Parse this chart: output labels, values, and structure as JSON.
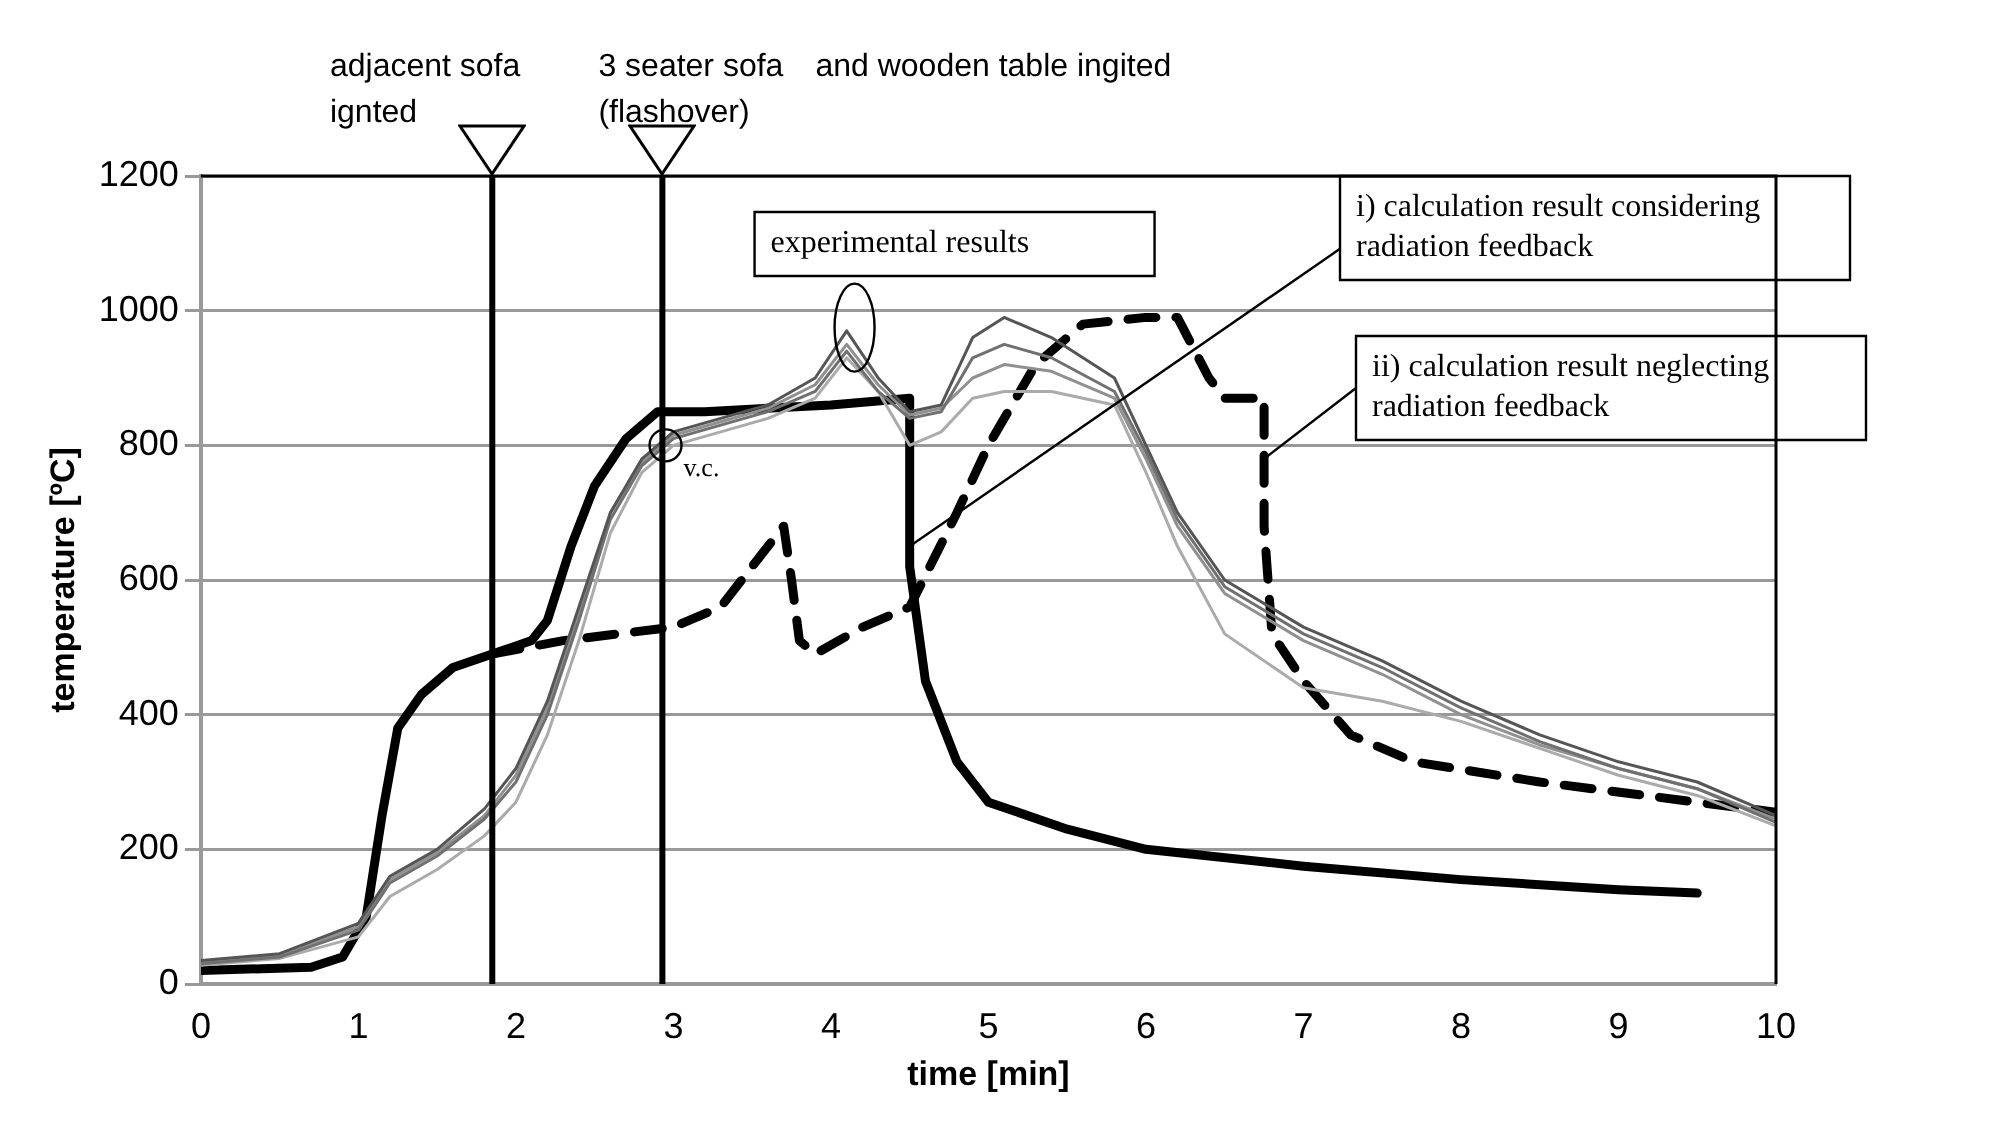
{
  "chart_data": {
    "type": "line",
    "xlabel": "time [min]",
    "ylabel": "temperature [ºC]",
    "xlim": [
      0,
      10
    ],
    "xticks": [
      0,
      1,
      2,
      3,
      4,
      5,
      6,
      7,
      8,
      9,
      10
    ],
    "ylim": [
      0,
      1200
    ],
    "yticks": [
      0,
      200,
      400,
      600,
      800,
      1000,
      1200
    ],
    "grid": "y",
    "legend": false,
    "marker": "none",
    "series": [
      {
        "color": "#555555",
        "x": [
          0,
          0.5,
          1,
          1.2,
          1.5,
          1.8,
          2,
          2.2,
          2.4,
          2.6,
          2.8,
          3,
          3.3,
          3.6,
          3.9,
          4.1,
          4.3,
          4.5,
          4.7,
          4.9,
          5.1,
          5.4,
          5.8,
          6,
          6.2,
          6.5,
          7,
          7.5,
          8,
          8.5,
          9,
          9.5,
          10
        ],
        "values": [
          35,
          45,
          90,
          160,
          200,
          260,
          320,
          420,
          560,
          700,
          780,
          820,
          840,
          860,
          900,
          970,
          900,
          850,
          860,
          960,
          990,
          960,
          900,
          800,
          700,
          600,
          530,
          480,
          420,
          370,
          330,
          300,
          250
        ]
      },
      {
        "color": "#707070",
        "x": [
          0,
          0.5,
          1,
          1.2,
          1.5,
          1.8,
          2,
          2.2,
          2.4,
          2.6,
          2.8,
          3,
          3.3,
          3.6,
          3.9,
          4.1,
          4.3,
          4.5,
          4.7,
          4.9,
          5.1,
          5.4,
          5.8,
          6,
          6.2,
          6.5,
          7,
          7.5,
          8,
          8.5,
          9,
          9.5,
          10
        ],
        "values": [
          30,
          40,
          80,
          150,
          190,
          245,
          300,
          400,
          540,
          690,
          770,
          810,
          830,
          850,
          880,
          940,
          880,
          840,
          850,
          930,
          950,
          930,
          880,
          790,
          690,
          590,
          520,
          470,
          410,
          360,
          320,
          290,
          240
        ]
      },
      {
        "color": "#909090",
        "x": [
          0,
          0.5,
          1,
          1.2,
          1.5,
          1.8,
          2,
          2.2,
          2.4,
          2.6,
          2.8,
          3,
          3.3,
          3.6,
          3.9,
          4.1,
          4.3,
          4.5,
          4.7,
          4.9,
          5.1,
          5.4,
          5.8,
          6,
          6.2,
          6.5,
          7,
          7.5,
          8,
          8.5,
          9,
          9.5,
          10
        ],
        "values": [
          32,
          42,
          85,
          155,
          195,
          250,
          310,
          410,
          550,
          700,
          775,
          815,
          835,
          855,
          890,
          950,
          890,
          845,
          855,
          900,
          920,
          910,
          870,
          780,
          680,
          580,
          510,
          460,
          400,
          355,
          320,
          290,
          245
        ]
      },
      {
        "color": "#ababab",
        "x": [
          0,
          0.5,
          1,
          1.2,
          1.5,
          1.8,
          2,
          2.2,
          2.4,
          2.6,
          2.8,
          3,
          3.3,
          3.6,
          3.9,
          4.1,
          4.3,
          4.5,
          4.7,
          4.9,
          5.1,
          5.4,
          5.8,
          6,
          6.2,
          6.5,
          7,
          7.5,
          8,
          8.5,
          9,
          9.5,
          10
        ],
        "values": [
          28,
          38,
          70,
          130,
          170,
          220,
          270,
          370,
          510,
          670,
          760,
          800,
          820,
          840,
          870,
          930,
          880,
          800,
          820,
          870,
          880,
          880,
          860,
          760,
          650,
          520,
          440,
          420,
          390,
          350,
          310,
          280,
          235
        ]
      },
      {
        "color": "#000000",
        "x": [
          0,
          0.7,
          0.9,
          1.05,
          1.15,
          1.25,
          1.4,
          1.6,
          1.85,
          2.1,
          2.2,
          2.35,
          2.5,
          2.7,
          2.9,
          3.2,
          4,
          4.5,
          4.5,
          4.6,
          4.8,
          5,
          5.5,
          6,
          7,
          8,
          9,
          9.5
        ],
        "values": [
          20,
          25,
          40,
          100,
          250,
          380,
          430,
          470,
          490,
          510,
          540,
          650,
          740,
          810,
          850,
          850,
          860,
          870,
          620,
          450,
          330,
          270,
          230,
          200,
          175,
          155,
          140,
          135
        ]
      },
      {
        "color": "#000000",
        "line_style": "dashed",
        "x": [
          1.85,
          2.3,
          3,
          3.3,
          3.7,
          3.75,
          3.8,
          3.9,
          4.2,
          4.5,
          4.8,
          5,
          5.3,
          5.6,
          6,
          6.2,
          6.4,
          6.5,
          6.75,
          6.75,
          6.8,
          7,
          7.3,
          7.7,
          8.5,
          9.5,
          10
        ],
        "values": [
          490,
          510,
          530,
          560,
          680,
          600,
          510,
          490,
          530,
          560,
          700,
          800,
          920,
          980,
          990,
          990,
          900,
          870,
          870,
          680,
          520,
          450,
          370,
          330,
          300,
          270,
          255
        ]
      }
    ],
    "ref_lines": [
      {
        "axis": "x",
        "value": 1.85,
        "label": "adjacent sofa ignted"
      },
      {
        "axis": "x",
        "value": 2.93,
        "label": "3 seater sofa (flashover)"
      }
    ],
    "annotations": [
      "and wooden table ingited",
      {
        "text": "experimental results",
        "x": 4.15,
        "y": 960
      },
      {
        "text": "i) calculation result considering radiation feedback",
        "x": 4.5,
        "y": 650
      },
      {
        "text": "ii) calculation result neglecting radiation feedback",
        "x": 6.75,
        "y": 780
      },
      {
        "text": "v.c.",
        "x": 2.95,
        "y": 800
      }
    ]
  }
}
